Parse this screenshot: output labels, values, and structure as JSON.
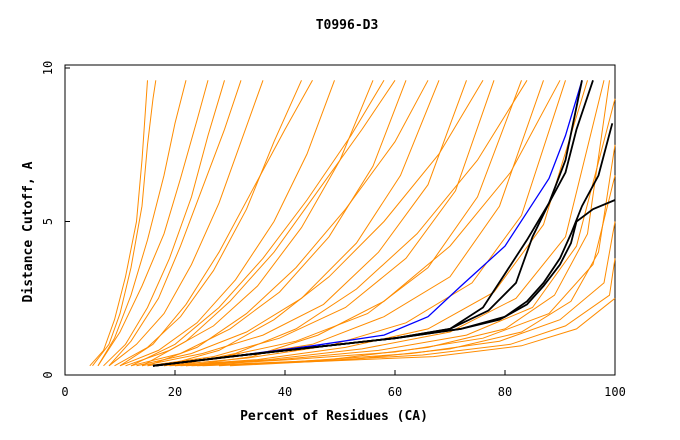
{
  "chart_data": {
    "type": "line",
    "title": "T0996-D3",
    "xlabel": "Percent of Residues (CA)",
    "ylabel": "Distance Cutoff, A",
    "xlim": [
      0,
      100
    ],
    "ylim": [
      0,
      10
    ],
    "x_ticks": [
      "0",
      "20",
      "40",
      "60",
      "80",
      "100"
    ],
    "y_ticks": [
      "0",
      "5",
      "10"
    ],
    "grid": false,
    "legend": "none",
    "colors": {
      "background_models": "#ff8c00",
      "highlight_blue": "#0000ff",
      "highlight_black": "#000000"
    },
    "background_series": [
      {
        "x": [
          5,
          8,
          10,
          12,
          14,
          15,
          16,
          16.5
        ],
        "y": [
          0.3,
          1.0,
          2.0,
          3.5,
          5.5,
          7.5,
          9.0,
          9.6
        ]
      },
      {
        "x": [
          4.5,
          7,
          9,
          11,
          13,
          14,
          15
        ],
        "y": [
          0.3,
          0.8,
          1.8,
          3.2,
          5.0,
          7.0,
          9.6
        ]
      },
      {
        "x": [
          6,
          9,
          12,
          15,
          18,
          20,
          22
        ],
        "y": [
          0.3,
          1.2,
          2.6,
          4.4,
          6.5,
          8.2,
          9.6
        ]
      },
      {
        "x": [
          7,
          11,
          15,
          19,
          23,
          26,
          29
        ],
        "y": [
          0.3,
          1.0,
          2.2,
          3.8,
          5.8,
          7.8,
          9.6
        ]
      },
      {
        "x": [
          8,
          13,
          18,
          23,
          28,
          32,
          36
        ],
        "y": [
          0.3,
          1.0,
          2.0,
          3.6,
          5.6,
          7.6,
          9.6
        ]
      },
      {
        "x": [
          9,
          15,
          21,
          27,
          33,
          38,
          43
        ],
        "y": [
          0.3,
          0.9,
          1.9,
          3.4,
          5.4,
          7.6,
          9.6
        ]
      },
      {
        "x": [
          10,
          17,
          24,
          31,
          38,
          44,
          49
        ],
        "y": [
          0.3,
          0.8,
          1.7,
          3.1,
          5.0,
          7.2,
          9.6
        ]
      },
      {
        "x": [
          11,
          19,
          27,
          35,
          43,
          50,
          56
        ],
        "y": [
          0.3,
          0.8,
          1.6,
          2.9,
          4.8,
          7.0,
          9.6
        ]
      },
      {
        "x": [
          12,
          21,
          30,
          39,
          48,
          56,
          62
        ],
        "y": [
          0.3,
          0.7,
          1.5,
          2.7,
          4.5,
          6.8,
          9.6
        ]
      },
      {
        "x": [
          13,
          23,
          33,
          43,
          53,
          61,
          68
        ],
        "y": [
          0.3,
          0.7,
          1.4,
          2.5,
          4.3,
          6.5,
          9.6
        ]
      },
      {
        "x": [
          14,
          25,
          36,
          47,
          57,
          66,
          73
        ],
        "y": [
          0.3,
          0.7,
          1.3,
          2.3,
          4.0,
          6.2,
          9.6
        ]
      },
      {
        "x": [
          15,
          27,
          39,
          51,
          62,
          71,
          78
        ],
        "y": [
          0.3,
          0.6,
          1.2,
          2.2,
          3.8,
          6.0,
          9.6
        ]
      },
      {
        "x": [
          16,
          29,
          42,
          55,
          66,
          75,
          83
        ],
        "y": [
          0.3,
          0.6,
          1.1,
          2.0,
          3.5,
          5.8,
          9.6
        ]
      },
      {
        "x": [
          17,
          31,
          45,
          58,
          70,
          79,
          87
        ],
        "y": [
          0.3,
          0.6,
          1.0,
          1.9,
          3.2,
          5.5,
          9.6
        ]
      },
      {
        "x": [
          18,
          33,
          48,
          62,
          74,
          83,
          91
        ],
        "y": [
          0.3,
          0.55,
          0.95,
          1.7,
          3.0,
          5.2,
          9.6
        ]
      },
      {
        "x": [
          19,
          35,
          51,
          66,
          78,
          87,
          95
        ],
        "y": [
          0.3,
          0.5,
          0.9,
          1.5,
          2.7,
          4.9,
          9.6
        ]
      },
      {
        "x": [
          20,
          37,
          54,
          70,
          82,
          91,
          98
        ],
        "y": [
          0.3,
          0.5,
          0.85,
          1.4,
          2.5,
          4.5,
          9.6
        ]
      },
      {
        "x": [
          21,
          39,
          57,
          73,
          85,
          93,
          100
        ],
        "y": [
          0.3,
          0.5,
          0.8,
          1.3,
          2.2,
          4.2,
          9.0
        ]
      },
      {
        "x": [
          22,
          41,
          60,
          76,
          88,
          96,
          100
        ],
        "y": [
          0.3,
          0.5,
          0.75,
          1.2,
          2.0,
          3.6,
          6.5
        ]
      },
      {
        "x": [
          23,
          43,
          63,
          79,
          90,
          98,
          100
        ],
        "y": [
          0.3,
          0.45,
          0.7,
          1.1,
          1.8,
          3.0,
          5.0
        ]
      },
      {
        "x": [
          24,
          45,
          65,
          81,
          91,
          99,
          100
        ],
        "y": [
          0.3,
          0.45,
          0.65,
          1.0,
          1.6,
          2.6,
          3.8
        ]
      },
      {
        "x": [
          25,
          47,
          67,
          83,
          93,
          100
        ],
        "y": [
          0.3,
          0.45,
          0.6,
          0.95,
          1.5,
          2.5
        ]
      },
      {
        "x": [
          12,
          20,
          28,
          36,
          44,
          52,
          58
        ],
        "y": [
          0.3,
          1.0,
          2.2,
          3.8,
          5.7,
          7.8,
          9.6
        ]
      },
      {
        "x": [
          15,
          24,
          33,
          42,
          51,
          60,
          66
        ],
        "y": [
          0.3,
          0.9,
          2.0,
          3.5,
          5.4,
          7.6,
          9.6
        ]
      },
      {
        "x": [
          18,
          28,
          38,
          48,
          58,
          68,
          76
        ],
        "y": [
          0.3,
          0.8,
          1.8,
          3.2,
          5.0,
          7.2,
          9.6
        ]
      },
      {
        "x": [
          20,
          31,
          42,
          53,
          64,
          75,
          84
        ],
        "y": [
          0.3,
          0.7,
          1.5,
          2.8,
          4.6,
          7.0,
          9.6
        ]
      },
      {
        "x": [
          22,
          34,
          46,
          58,
          70,
          81,
          90
        ],
        "y": [
          0.3,
          0.6,
          1.3,
          2.4,
          4.2,
          6.6,
          9.6
        ]
      },
      {
        "x": [
          6,
          10,
          14,
          18,
          21,
          24,
          26
        ],
        "y": [
          0.3,
          1.4,
          2.9,
          4.6,
          6.4,
          8.3,
          9.6
        ]
      },
      {
        "x": [
          8,
          12,
          17,
          21,
          25,
          29,
          32
        ],
        "y": [
          0.3,
          1.1,
          2.5,
          4.2,
          6.1,
          8.0,
          9.6
        ]
      },
      {
        "x": [
          10,
          16,
          22,
          28,
          34,
          40,
          45
        ],
        "y": [
          0.3,
          1.0,
          2.3,
          4.0,
          6.0,
          8.0,
          9.6
        ]
      },
      {
        "x": [
          14,
          22,
          30,
          38,
          46,
          54,
          60
        ],
        "y": [
          0.3,
          1.1,
          2.4,
          4.0,
          6.0,
          8.0,
          9.6
        ]
      },
      {
        "x": [
          28,
          48,
          66,
          80,
          89,
          95,
          99
        ],
        "y": [
          0.3,
          0.5,
          0.9,
          1.5,
          2.6,
          4.6,
          9.6
        ]
      },
      {
        "x": [
          30,
          52,
          70,
          83,
          92,
          97,
          100
        ],
        "y": [
          0.3,
          0.5,
          0.85,
          1.4,
          2.4,
          4.0,
          7.5
        ]
      }
    ],
    "highlight_series": [
      {
        "color": "blue",
        "x": [
          16,
          30,
          45,
          58,
          66,
          72,
          80,
          84,
          88,
          91,
          94
        ],
        "y": [
          0.3,
          0.6,
          0.95,
          1.3,
          1.9,
          2.9,
          4.2,
          5.3,
          6.4,
          7.8,
          9.6
        ]
      },
      {
        "color": "black",
        "x": [
          16,
          30,
          45,
          60,
          70,
          77,
          82,
          85,
          88,
          91,
          93,
          96
        ],
        "y": [
          0.3,
          0.6,
          0.9,
          1.2,
          1.5,
          2.1,
          3.0,
          4.5,
          5.6,
          6.6,
          8.0,
          9.6
        ]
      },
      {
        "color": "black",
        "x": [
          16,
          30,
          45,
          60,
          70,
          76,
          80,
          84,
          88,
          91,
          94
        ],
        "y": [
          0.3,
          0.6,
          0.9,
          1.2,
          1.5,
          2.2,
          3.3,
          4.4,
          5.6,
          7.0,
          9.6
        ]
      },
      {
        "color": "black",
        "x": [
          16,
          30,
          45,
          60,
          72,
          80,
          84,
          87,
          90,
          92,
          94,
          97,
          99.5
        ],
        "y": [
          0.3,
          0.6,
          0.9,
          1.2,
          1.5,
          1.9,
          2.4,
          3.0,
          3.8,
          4.6,
          5.5,
          6.5,
          8.2
        ]
      },
      {
        "color": "black",
        "x": [
          16,
          30,
          45,
          60,
          72,
          79,
          84,
          87,
          90,
          92,
          93,
          96,
          100
        ],
        "y": [
          0.3,
          0.6,
          0.9,
          1.2,
          1.5,
          1.8,
          2.3,
          2.9,
          3.6,
          4.3,
          5.0,
          5.4,
          5.7
        ]
      }
    ]
  }
}
